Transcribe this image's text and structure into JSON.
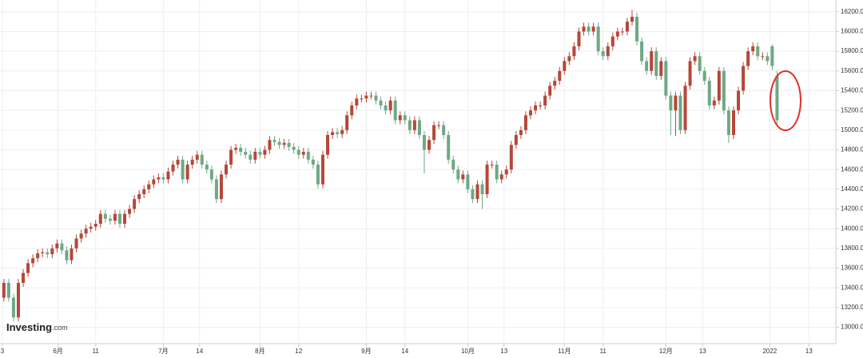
{
  "chart_data": {
    "type": "candlestick",
    "logo": [
      "Investing",
      ".com"
    ],
    "up_color": "#b5473a",
    "down_color": "#6fa885",
    "grid": true,
    "open": [
      13300,
      13450,
      13300,
      13100,
      13450,
      13550,
      13650,
      13700,
      13750,
      13760,
      13740,
      13800,
      13850,
      13780,
      13680,
      13800,
      13900,
      13950,
      14000,
      14020,
      14050,
      14150,
      14100,
      14080,
      14150,
      14050,
      14150,
      14200,
      14300,
      14350,
      14400,
      14450,
      14500,
      14520,
      14500,
      14580,
      14650,
      14700,
      14500,
      14650,
      14700,
      14750,
      14650,
      14600,
      14500,
      14300,
      14550,
      14650,
      14800,
      14820,
      14780,
      14750,
      14700,
      14780,
      14750,
      14800,
      14900,
      14880,
      14850,
      14870,
      14830,
      14800,
      14750,
      14780,
      14700,
      14650,
      14450,
      14750,
      14950,
      14980,
      14960,
      15000,
      15150,
      15250,
      15320,
      15320,
      15350,
      15350,
      15300,
      15250,
      15200,
      15300,
      15100,
      15150,
      15100,
      15000,
      15100,
      14950,
      14800,
      14900,
      15050,
      15050,
      14950,
      14700,
      14600,
      14500,
      14550,
      14400,
      14300,
      14450,
      14350,
      14650,
      14650,
      14500,
      14550,
      14600,
      14850,
      14950,
      15000,
      15150,
      15200,
      15250,
      15250,
      15350,
      15450,
      15500,
      15600,
      15700,
      15750,
      15850,
      16000,
      16050,
      16000,
      16050,
      15800,
      15750,
      15850,
      15950,
      16000,
      16000,
      16100,
      16150,
      15900,
      15700,
      15600,
      15800,
      15550,
      15700,
      15350,
      15200,
      15350,
      15000,
      15450,
      15700,
      15750,
      15600,
      15500,
      15250,
      15300,
      15600,
      15200,
      14950,
      15200,
      15400,
      15650,
      15800,
      15850,
      15750,
      15750,
      15850,
      15550
    ],
    "high": [
      13490,
      13490,
      13340,
      13490,
      13590,
      13690,
      13740,
      13790,
      13800,
      13800,
      13840,
      13890,
      13890,
      13820,
      13840,
      13940,
      13990,
      14040,
      14060,
      14090,
      14190,
      14190,
      14140,
      14190,
      14190,
      14190,
      14240,
      14340,
      14390,
      14440,
      14490,
      14540,
      14560,
      14560,
      14620,
      14690,
      14740,
      14740,
      14690,
      14740,
      14790,
      14790,
      14690,
      14640,
      14540,
      14590,
      14690,
      14840,
      14860,
      14860,
      14820,
      14790,
      14820,
      14820,
      14840,
      14940,
      14940,
      14920,
      14910,
      14910,
      14870,
      14840,
      14820,
      14820,
      14740,
      14690,
      14790,
      14990,
      15020,
      15020,
      15040,
      15190,
      15290,
      15360,
      15360,
      15390,
      15390,
      15390,
      15340,
      15290,
      15340,
      15340,
      15190,
      15190,
      15140,
      15140,
      15140,
      14990,
      14940,
      15090,
      15090,
      15090,
      14990,
      14740,
      14640,
      14590,
      14590,
      14440,
      14490,
      14490,
      14690,
      14690,
      14690,
      14590,
      14640,
      14890,
      14990,
      15040,
      15190,
      15240,
      15290,
      15290,
      15390,
      15490,
      15540,
      15640,
      15740,
      15790,
      15890,
      16040,
      16090,
      16090,
      16090,
      16090,
      15840,
      15890,
      15990,
      16040,
      16040,
      16140,
      16220,
      16190,
      15940,
      15740,
      15840,
      15840,
      15740,
      15740,
      15390,
      15390,
      15390,
      15490,
      15740,
      15790,
      15790,
      15640,
      15540,
      15340,
      15640,
      15640,
      15240,
      15240,
      15440,
      15690,
      15840,
      15890,
      15890,
      15790,
      15790,
      15870,
      15600
    ],
    "low": [
      13260,
      13260,
      13060,
      13060,
      13410,
      13510,
      13610,
      13660,
      13710,
      13700,
      13700,
      13760,
      13740,
      13640,
      13640,
      13760,
      13860,
      13910,
      13960,
      13980,
      14010,
      14060,
      14040,
      14040,
      14010,
      14010,
      14110,
      14160,
      14260,
      14310,
      14360,
      14410,
      14460,
      14460,
      14460,
      14540,
      14610,
      14460,
      14460,
      14610,
      14660,
      14610,
      14560,
      14460,
      14260,
      14260,
      14510,
      14610,
      14760,
      14740,
      14710,
      14660,
      14660,
      14710,
      14710,
      14760,
      14840,
      14810,
      14810,
      14790,
      14760,
      14710,
      14710,
      14660,
      14610,
      14410,
      14410,
      14710,
      14910,
      14920,
      14920,
      14960,
      15110,
      15210,
      15280,
      15280,
      15310,
      15260,
      15210,
      15160,
      15160,
      15060,
      15060,
      15060,
      14960,
      14960,
      14910,
      14560,
      14760,
      14860,
      15010,
      14910,
      14660,
      14560,
      14460,
      14460,
      14360,
      14260,
      14260,
      14200,
      14310,
      14610,
      14460,
      14460,
      14510,
      14560,
      14810,
      14910,
      14960,
      15110,
      15160,
      15210,
      15210,
      15310,
      15410,
      15460,
      15560,
      15660,
      15710,
      15810,
      15960,
      15960,
      15960,
      15760,
      15710,
      15710,
      15810,
      15910,
      15960,
      15960,
      16060,
      15860,
      15660,
      15560,
      15560,
      15510,
      15510,
      15310,
      14950,
      14940,
      14960,
      14960,
      15410,
      15660,
      15560,
      15460,
      15210,
      15210,
      15260,
      15160,
      14870,
      14910,
      15160,
      15360,
      15610,
      15760,
      15710,
      15710,
      15660,
      15610,
      15060
    ],
    "close": [
      13450,
      13300,
      13100,
      13450,
      13550,
      13650,
      13700,
      13750,
      13760,
      13740,
      13800,
      13850,
      13780,
      13680,
      13800,
      13900,
      13950,
      14000,
      14020,
      14050,
      14150,
      14100,
      14080,
      14150,
      14050,
      14150,
      14200,
      14300,
      14350,
      14400,
      14450,
      14500,
      14520,
      14500,
      14580,
      14650,
      14700,
      14500,
      14650,
      14700,
      14750,
      14650,
      14600,
      14500,
      14300,
      14550,
      14650,
      14800,
      14820,
      14780,
      14750,
      14700,
      14780,
      14750,
      14800,
      14900,
      14880,
      14850,
      14870,
      14830,
      14800,
      14750,
      14780,
      14700,
      14650,
      14450,
      14750,
      14950,
      14980,
      14960,
      15000,
      15150,
      15250,
      15320,
      15320,
      15350,
      15350,
      15300,
      15250,
      15200,
      15300,
      15100,
      15150,
      15100,
      15000,
      15100,
      14950,
      14800,
      14900,
      15050,
      15050,
      14950,
      14700,
      14600,
      14500,
      14550,
      14400,
      14300,
      14450,
      14350,
      14650,
      14650,
      14500,
      14550,
      14600,
      14850,
      14950,
      15000,
      15150,
      15200,
      15250,
      15250,
      15350,
      15450,
      15500,
      15600,
      15700,
      15750,
      15850,
      16000,
      16050,
      16000,
      16050,
      15800,
      15750,
      15850,
      15950,
      16000,
      16000,
      16100,
      16150,
      15900,
      15700,
      15600,
      15800,
      15550,
      15700,
      15350,
      15200,
      15350,
      15000,
      15450,
      15700,
      15750,
      15600,
      15500,
      15250,
      15300,
      15600,
      15200,
      14950,
      15200,
      15400,
      15650,
      15800,
      15850,
      15750,
      15750,
      15700,
      15650,
      15100
    ],
    "xlim": [
      -0.8,
      172
    ],
    "xticks": [
      {
        "value": -0.3,
        "label": "3"
      },
      {
        "value": 11.2,
        "label": "6月"
      },
      {
        "value": 19,
        "label": "11"
      },
      {
        "value": 33,
        "label": "7月"
      },
      {
        "value": 40.5,
        "label": "14"
      },
      {
        "value": 53,
        "label": "8月"
      },
      {
        "value": 61,
        "label": "12"
      },
      {
        "value": 75,
        "label": "9月"
      },
      {
        "value": 83,
        "label": "14"
      },
      {
        "value": 96,
        "label": "10月"
      },
      {
        "value": 103.5,
        "label": "13"
      },
      {
        "value": 116,
        "label": "11月"
      },
      {
        "value": 124,
        "label": "11"
      },
      {
        "value": 137,
        "label": "12月"
      },
      {
        "value": 144.6,
        "label": "13"
      },
      {
        "value": 158.5,
        "label": "2022"
      },
      {
        "value": 166.6,
        "label": "13"
      }
    ],
    "ylim": [
      12850,
      16320
    ],
    "yticks": [
      {
        "value": 13000,
        "label": "13000.0"
      },
      {
        "value": 13200,
        "label": "13200.0"
      },
      {
        "value": 13400,
        "label": "13400.0"
      },
      {
        "value": 13600,
        "label": "13600.0"
      },
      {
        "value": 13800,
        "label": "13800.0"
      },
      {
        "value": 14000,
        "label": "14000.0"
      },
      {
        "value": 14200,
        "label": "14200.0"
      },
      {
        "value": 14400,
        "label": "14400.0"
      },
      {
        "value": 14600,
        "label": "14600.0"
      },
      {
        "value": 14800,
        "label": "14800.0"
      },
      {
        "value": 15000,
        "label": "15000.0"
      },
      {
        "value": 15200,
        "label": "15200.0"
      },
      {
        "value": 15400,
        "label": "15400.0"
      },
      {
        "value": 15600,
        "label": "15600.0"
      },
      {
        "value": 15800,
        "label": "15800.0"
      },
      {
        "value": 16000,
        "label": "16000.0"
      },
      {
        "value": 16200,
        "label": "16200.0"
      }
    ]
  }
}
